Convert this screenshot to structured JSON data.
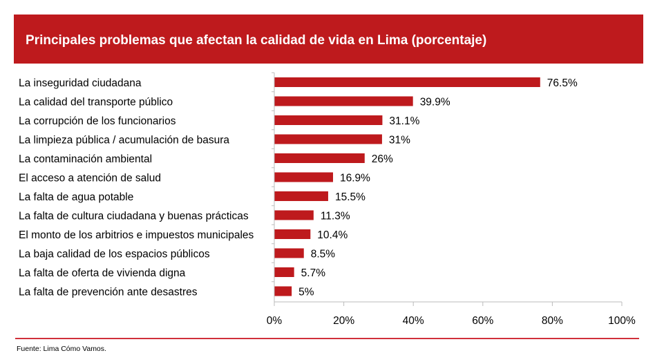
{
  "chart_data": {
    "type": "bar",
    "orientation": "horizontal",
    "title": "Principales problemas que afectan la calidad de vida en Lima (porcentaje)",
    "categories": [
      "La inseguridad ciudadana",
      "La calidad del transporte público",
      "La corrupción de los funcionarios",
      "La limpieza pública / acumulación de basura",
      "La contaminación ambiental",
      "El acceso a atención de salud",
      "La falta de agua potable",
      "La falta de cultura ciudadana y buenas prácticas",
      "El monto de los arbitrios e impuestos municipales",
      "La baja calidad de los espacios públicos",
      "La falta de oferta de vivienda digna",
      "La falta de prevención ante desastres"
    ],
    "values": [
      76.5,
      39.9,
      31.1,
      31,
      26,
      16.9,
      15.5,
      11.3,
      10.4,
      8.5,
      5.7,
      5
    ],
    "data_labels": [
      "76.5%",
      "39.9%",
      "31.1%",
      "31%",
      "26%",
      "16.9%",
      "15.5%",
      "11.3%",
      "10.4%",
      "8.5%",
      "5.7%",
      "5%"
    ],
    "xlim": [
      0,
      100
    ],
    "xticks": [
      0,
      20,
      40,
      60,
      80,
      100
    ],
    "xtick_labels": [
      "0%",
      "20%",
      "40%",
      "60%",
      "80%",
      "100%"
    ],
    "grid": false,
    "bar_color": "#be1a1d"
  },
  "header": {
    "title": "Principales problemas que afectan la calidad de vida en Lima (porcentaje)",
    "color": "#be1a1d"
  },
  "footer": {
    "source": "Fuente: Lima Cómo Vamos."
  }
}
